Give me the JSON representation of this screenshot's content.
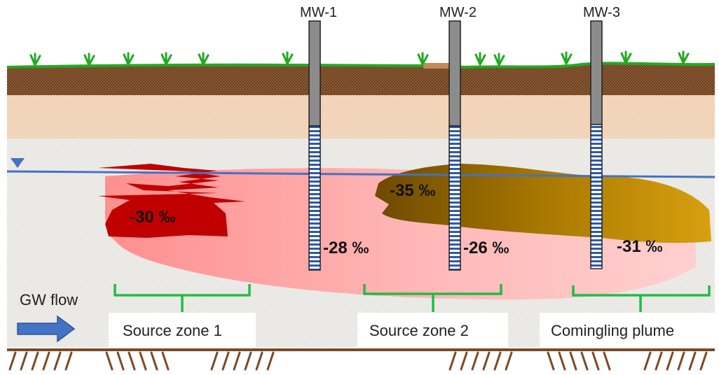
{
  "wells": [
    {
      "id": "MW-1",
      "label": "MW-1",
      "value": "-28 ‰"
    },
    {
      "id": "MW-2",
      "label": "MW-2",
      "value": "-26 ‰"
    },
    {
      "id": "MW-3",
      "label": "MW-3",
      "value": "-31 ‰"
    }
  ],
  "plumes": {
    "red_core_value": "-30 ‰",
    "brown_core_value": "-35 ‰"
  },
  "zones": [
    {
      "label": "Source zone 1"
    },
    {
      "label": "Source zone 2"
    },
    {
      "label": "Comingling plume"
    }
  ],
  "flow": {
    "label": "GW flow"
  },
  "colors": {
    "grass": "#22aa22",
    "topsoil": "#7a4a28",
    "sand": "#f5d9bf",
    "aquifer": "#f2efe8",
    "water_table": "#4472c4",
    "red_plume": "#c00000",
    "pink_plume": "#ff9999",
    "brown_plume": "#7a5200",
    "casing": "#8c8c8c",
    "screen": "#2f5aa8",
    "bracket": "#22bb44",
    "arrow": "#4472c4",
    "bedrock_line": "#7a4a28"
  }
}
